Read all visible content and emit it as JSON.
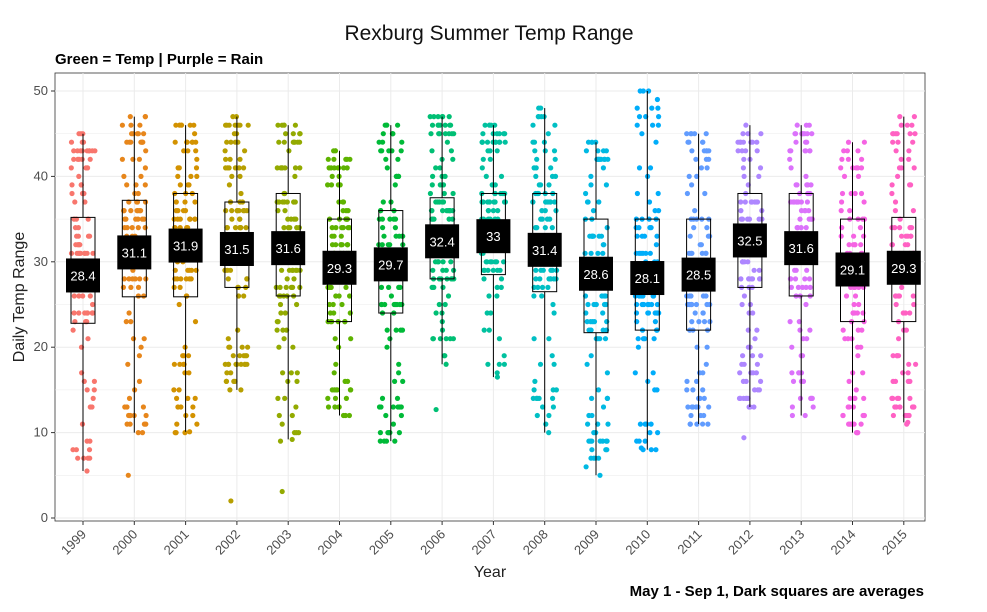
{
  "chart_data": {
    "type": "box",
    "title": "Rexburg Summer Temp Range",
    "subtitle": "Green = Temp | Purple = Rain",
    "caption": "May 1 - Sep 1, Dark squares are averages",
    "xlabel": "Year",
    "ylabel": "Daily Temp Range",
    "ylim": [
      0,
      50
    ],
    "yticks": [
      0,
      10,
      20,
      30,
      40,
      50
    ],
    "grid": true,
    "legend": "none",
    "categories": [
      "1999",
      "2000",
      "2001",
      "2002",
      "2003",
      "2004",
      "2005",
      "2006",
      "2007",
      "2008",
      "2009",
      "2010",
      "2011",
      "2012",
      "2013",
      "2014",
      "2015"
    ],
    "colors": [
      "#F8766D",
      "#E7861B",
      "#D39200",
      "#B79F00",
      "#93AA00",
      "#5EB300",
      "#00BA38",
      "#00BF74",
      "#00C19F",
      "#00BFC4",
      "#00B9E3",
      "#00ADFA",
      "#619CFF",
      "#AE87FF",
      "#DB72FB",
      "#F564E3",
      "#FF61C3"
    ],
    "boxes": [
      {
        "min": 5.5,
        "q1": 22.8,
        "median": 28.4,
        "q3": 35.2,
        "max": 45.0,
        "mean": 28.4
      },
      {
        "min": 10.0,
        "q1": 25.9,
        "median": 31.0,
        "q3": 37.2,
        "max": 47.0,
        "mean": 31.1
      },
      {
        "min": 10.1,
        "q1": 25.9,
        "median": 32.0,
        "q3": 38.0,
        "max": 46.0,
        "mean": 31.9
      },
      {
        "min": 15.0,
        "q1": 27.0,
        "median": 31.0,
        "q3": 37.0,
        "max": 47.0,
        "mean": 31.5
      },
      {
        "min": 9.2,
        "q1": 26.0,
        "median": 32.0,
        "q3": 38.0,
        "max": 46.0,
        "mean": 31.6
      },
      {
        "min": 12.0,
        "q1": 23.0,
        "median": 30.0,
        "q3": 35.0,
        "max": 43.0,
        "mean": 29.3
      },
      {
        "min": 9.0,
        "q1": 24.0,
        "median": 30.0,
        "q3": 36.0,
        "max": 46.0,
        "mean": 29.7
      },
      {
        "min": 18.0,
        "q1": 28.0,
        "median": 32.0,
        "q3": 37.5,
        "max": 47.0,
        "mean": 32.4
      },
      {
        "min": 16.5,
        "q1": 28.5,
        "median": 33.0,
        "q3": 38.0,
        "max": 46.0,
        "mean": 33
      },
      {
        "min": 10.0,
        "q1": 26.5,
        "median": 31.0,
        "q3": 38.0,
        "max": 48.0,
        "mean": 31.4
      },
      {
        "min": 5.0,
        "q1": 21.7,
        "median": 28.0,
        "q3": 35.0,
        "max": 44.0,
        "mean": 28.6
      },
      {
        "min": 8.0,
        "q1": 22.0,
        "median": 28.0,
        "q3": 35.0,
        "max": 50.0,
        "mean": 28.1
      },
      {
        "min": 11.0,
        "q1": 22.0,
        "median": 28.0,
        "q3": 35.0,
        "max": 45.0,
        "mean": 28.5
      },
      {
        "min": 13.0,
        "q1": 27.0,
        "median": 33.0,
        "q3": 38.0,
        "max": 46.0,
        "mean": 32.5
      },
      {
        "min": 12.0,
        "q1": 26.0,
        "median": 32.0,
        "q3": 38.0,
        "max": 46.0,
        "mean": 31.6
      },
      {
        "min": 10.0,
        "q1": 23.0,
        "median": 29.0,
        "q3": 35.0,
        "max": 44.0,
        "mean": 29.1
      },
      {
        "min": 11.2,
        "q1": 23.0,
        "median": 29.0,
        "q3": 35.2,
        "max": 47.0,
        "mean": 29.3
      }
    ],
    "outliers": [
      {
        "year": "2000",
        "y": 5.0
      },
      {
        "year": "2001",
        "y": 46.0
      },
      {
        "year": "2002",
        "y": 2.0
      },
      {
        "year": "2003",
        "y": 3.1
      },
      {
        "year": "2006",
        "y": 12.7
      },
      {
        "year": "2008",
        "y": 48.0
      },
      {
        "year": "2010",
        "y": 8.2
      },
      {
        "year": "2012",
        "y": 9.4
      }
    ]
  }
}
